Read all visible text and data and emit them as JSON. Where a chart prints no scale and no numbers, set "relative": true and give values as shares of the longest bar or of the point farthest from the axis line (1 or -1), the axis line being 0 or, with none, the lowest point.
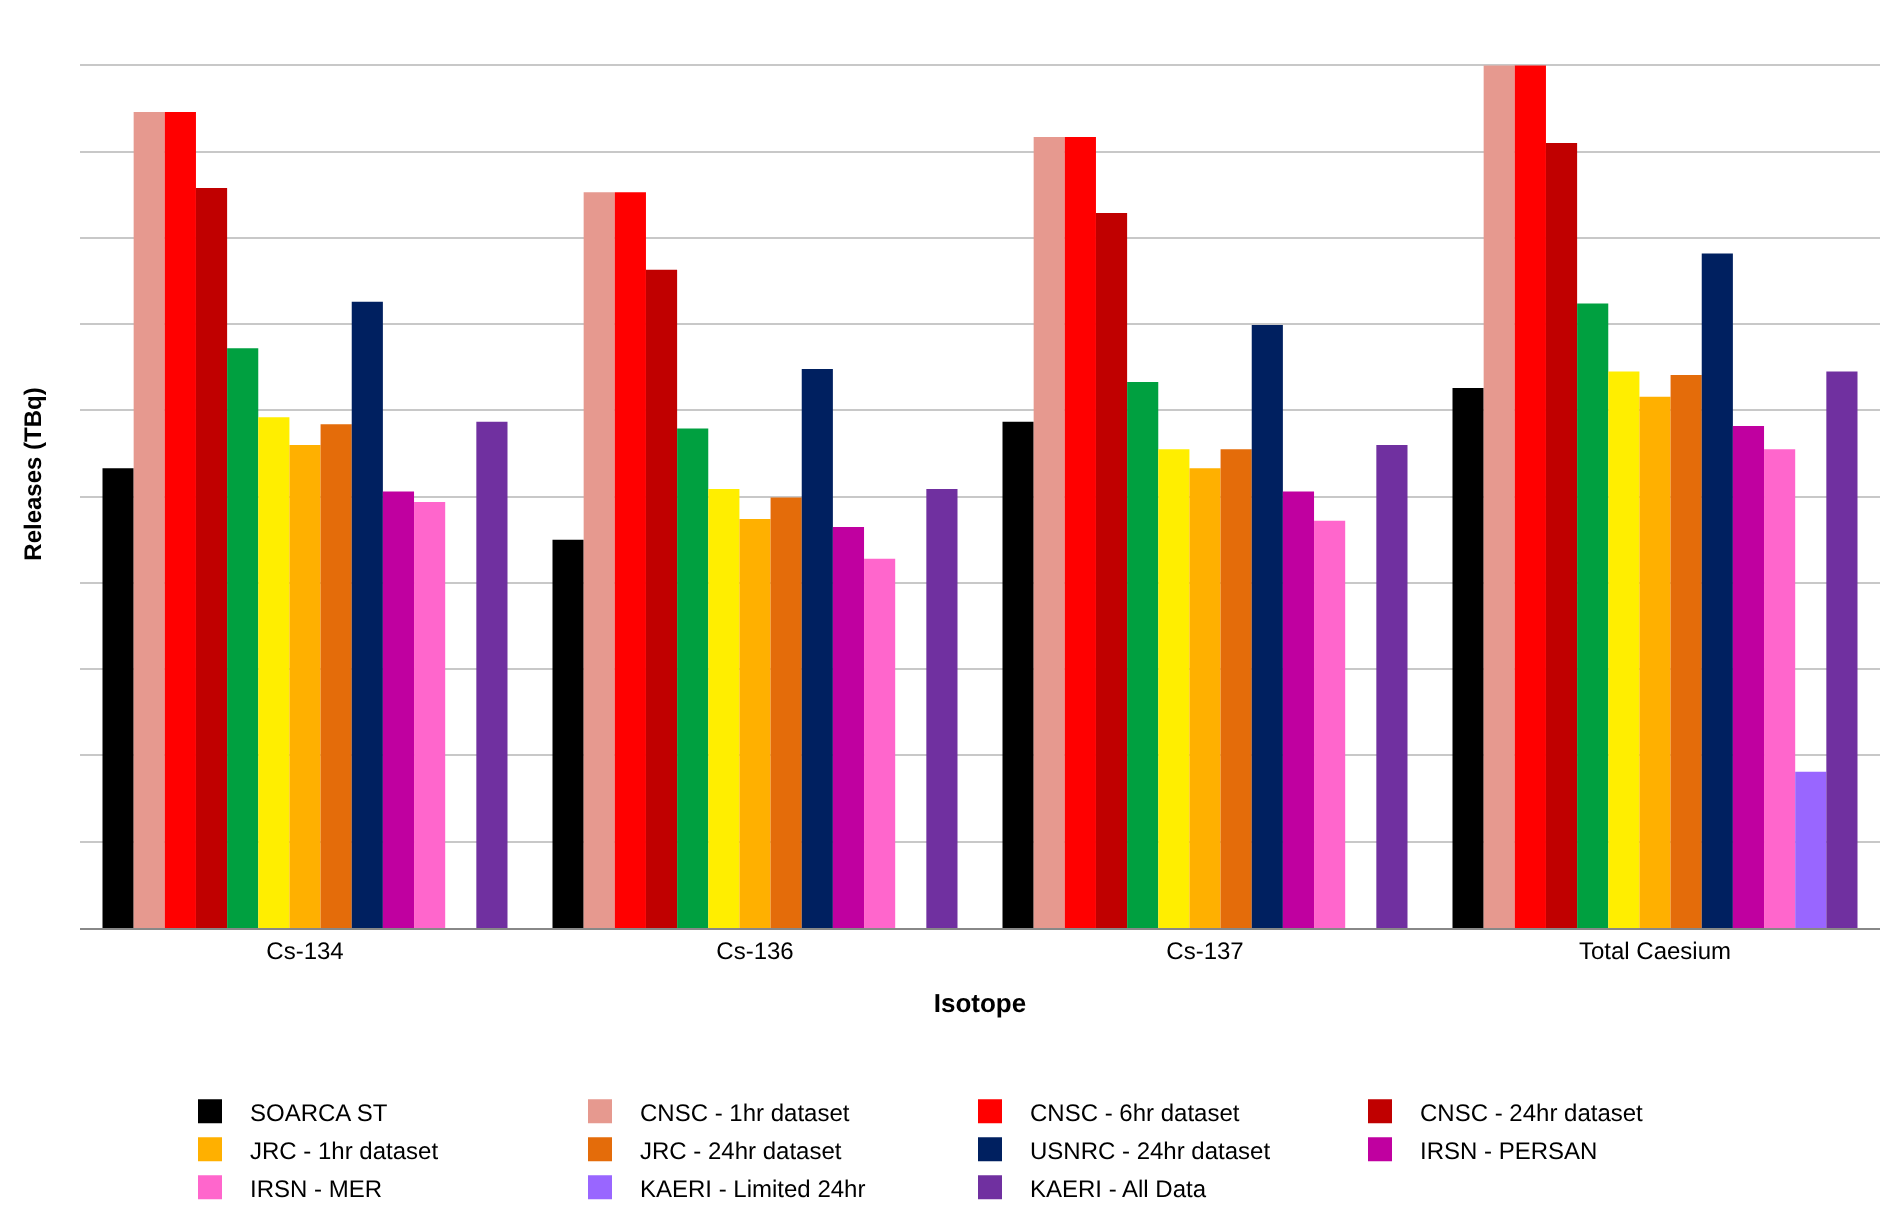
{
  "chart_data": {
    "type": "bar",
    "relative": true,
    "xlabel": "Isotope",
    "ylabel": "Releases (TBq)",
    "grid": "y",
    "legend": "bottom",
    "categories": [
      "Cs-134",
      "Cs-136",
      "Cs-137",
      "Total Caesium"
    ],
    "series": [
      {
        "name": "SOARCA ST",
        "color": "#000000",
        "values": [
          0.533,
          0.45,
          0.587,
          0.626
        ]
      },
      {
        "name": "CNSC - 1hr dataset",
        "color": "#e6998f",
        "values": [
          0.946,
          0.853,
          0.917,
          1
        ]
      },
      {
        "name": "CNSC - 6hr dataset",
        "color": "#ff0000",
        "values": [
          0.946,
          0.853,
          0.917,
          1
        ]
      },
      {
        "name": "CNSC - 24hr dataset",
        "color": "#c00000",
        "values": [
          0.858,
          0.763,
          0.829,
          0.91
        ]
      },
      {
        "color": "#00a040",
        "values": [
          0.672,
          0.579,
          0.633,
          0.724
        ]
      },
      {
        "color": "#ffee00",
        "values": [
          0.592,
          0.509,
          0.555,
          0.645
        ]
      },
      {
        "name": "JRC - 1hr dataset",
        "color": "#ffb000",
        "values": [
          0.56,
          0.474,
          0.533,
          0.616
        ]
      },
      {
        "name": "JRC - 24hr dataset",
        "color": "#e46c0a",
        "values": [
          0.584,
          0.499,
          0.555,
          0.641
        ]
      },
      {
        "name": "USNRC - 24hr dataset",
        "color": "#002060",
        "values": [
          0.726,
          0.648,
          0.699,
          0.782
        ]
      },
      {
        "name": "IRSN - PERSAN",
        "color": "#c000a0",
        "values": [
          0.506,
          0.465,
          0.506,
          0.582
        ]
      },
      {
        "name": "IRSN - MER",
        "color": "#ff66cc",
        "values": [
          0.494,
          0.428,
          0.472,
          0.555
        ]
      },
      {
        "name": "KAERI - Limited 24hr",
        "color": "#9966ff",
        "values": [
          null,
          null,
          null,
          0.181
        ]
      },
      {
        "name": "KAERI - All Data",
        "color": "#7030a0",
        "values": [
          0.587,
          0.509,
          0.56,
          0.645
        ]
      }
    ]
  }
}
